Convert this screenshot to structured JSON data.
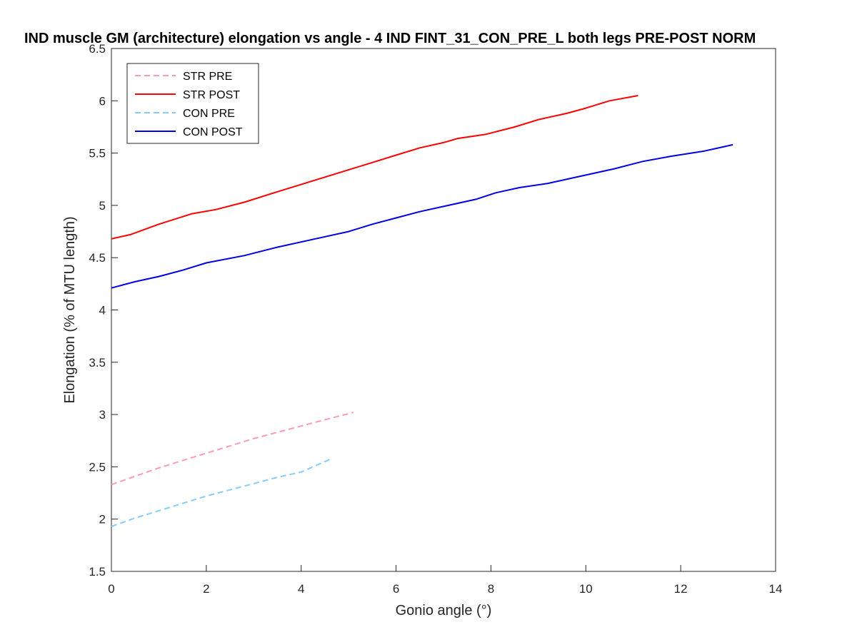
{
  "chart_data": {
    "type": "line",
    "title": "IND muscle GM (architecture) elongation vs angle - 4 IND FINT_31_CON_PRE_L both legs PRE-POST NORM",
    "xlabel": "Gonio angle (°)",
    "ylabel": "Elongation (% of MTU length)",
    "xlim": [
      0,
      14
    ],
    "ylim": [
      1.5,
      6.5
    ],
    "xticks": [
      0,
      2,
      4,
      6,
      8,
      10,
      12,
      14
    ],
    "xtick_labels": [
      "0",
      "2",
      "4",
      "6",
      "8",
      "10",
      "12",
      "14"
    ],
    "yticks": [
      1.5,
      2,
      2.5,
      3,
      3.5,
      4,
      4.5,
      5,
      5.5,
      6,
      6.5
    ],
    "ytick_labels": [
      "1.5",
      "2",
      "2.5",
      "3",
      "3.5",
      "4",
      "4.5",
      "5",
      "5.5",
      "6",
      "6.5"
    ],
    "grid": false,
    "legend_position": "top-left",
    "series": [
      {
        "name": "STR PRE",
        "color": "#ff99bb",
        "dash": true,
        "x": [
          0,
          0.5,
          1,
          1.5,
          2,
          2.5,
          3,
          3.5,
          4,
          4.5,
          5.1
        ],
        "y": [
          2.33,
          2.41,
          2.49,
          2.56,
          2.63,
          2.7,
          2.77,
          2.83,
          2.89,
          2.95,
          3.02
        ]
      },
      {
        "name": "STR POST",
        "color": "#ff0000",
        "dash": false,
        "x": [
          0,
          0.4,
          1,
          1.7,
          2.2,
          2.8,
          3.5,
          4,
          4.5,
          5,
          5.5,
          6,
          6.5,
          7,
          7.3,
          7.9,
          8.5,
          9,
          9.6,
          10,
          10.5,
          11.1
        ],
        "y": [
          4.68,
          4.72,
          4.82,
          4.92,
          4.96,
          5.03,
          5.13,
          5.2,
          5.27,
          5.34,
          5.41,
          5.48,
          5.55,
          5.6,
          5.64,
          5.68,
          5.75,
          5.82,
          5.88,
          5.93,
          6.0,
          6.05
        ]
      },
      {
        "name": "CON PRE",
        "color": "#88ccff",
        "dash": true,
        "x": [
          0,
          0.5,
          1,
          1.5,
          2,
          2.5,
          3,
          3.5,
          4,
          4.6
        ],
        "y": [
          1.93,
          2.01,
          2.08,
          2.15,
          2.22,
          2.28,
          2.34,
          2.4,
          2.45,
          2.57
        ]
      },
      {
        "name": "CON POST",
        "color": "#0000e6",
        "dash": false,
        "x": [
          0,
          0.5,
          1,
          1.5,
          2,
          2.8,
          3.5,
          4.3,
          5,
          5.5,
          6,
          6.5,
          7,
          7.7,
          8.1,
          8.6,
          9.2,
          10,
          10.6,
          11.2,
          11.8,
          12.5,
          13.1
        ],
        "y": [
          4.21,
          4.27,
          4.32,
          4.38,
          4.45,
          4.52,
          4.6,
          4.68,
          4.75,
          4.82,
          4.88,
          4.94,
          4.99,
          5.06,
          5.12,
          5.17,
          5.21,
          5.29,
          5.35,
          5.42,
          5.47,
          5.52,
          5.58
        ]
      }
    ]
  }
}
